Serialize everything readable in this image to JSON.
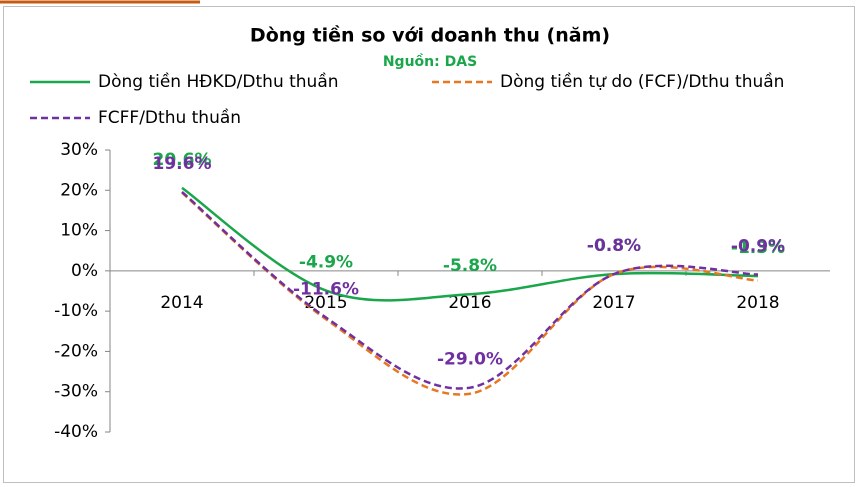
{
  "chart_data": {
    "type": "line",
    "title": "Dòng tiền so với doanh thu (năm)",
    "subtitle": "Nguồn: DAS",
    "categories": [
      "2014",
      "2015",
      "2016",
      "2017",
      "2018"
    ],
    "series": [
      {
        "name": "Dòng tiền HĐKD/Dthu thuần",
        "color": "#1aa64a",
        "dash": false,
        "values": [
          20.6,
          -4.9,
          -5.8,
          -0.8,
          -1.3
        ],
        "value_labels": [
          "20.6%",
          "-4.9%",
          "-5.8%",
          "-0.8%",
          "-1.3%"
        ]
      },
      {
        "name": "Dòng tiền tự do (FCF)/Dthu thuần",
        "color": "#e87722",
        "dash": true,
        "values": [
          19.4,
          -12.0,
          -30.5,
          -0.8,
          -2.4
        ]
      },
      {
        "name": "FCFF/Dthu thuần",
        "color": "#7030a0",
        "dash": true,
        "values": [
          19.6,
          -11.6,
          -29.0,
          -0.8,
          -0.9
        ],
        "value_labels": [
          "19.6%",
          "-11.6%",
          "-29.0%",
          "-0.8%",
          "-0.9%"
        ]
      }
    ],
    "ylim": [
      -40,
      30
    ],
    "yticks": [
      {
        "value": -40,
        "label": "-40%"
      },
      {
        "value": -30,
        "label": "-30%"
      },
      {
        "value": -20,
        "label": "-20%"
      },
      {
        "value": -10,
        "label": "-10%"
      },
      {
        "value": 0,
        "label": "0%"
      },
      {
        "value": 10,
        "label": "10%"
      },
      {
        "value": 20,
        "label": "20%"
      },
      {
        "value": 30,
        "label": "30%"
      }
    ],
    "grid": false
  }
}
